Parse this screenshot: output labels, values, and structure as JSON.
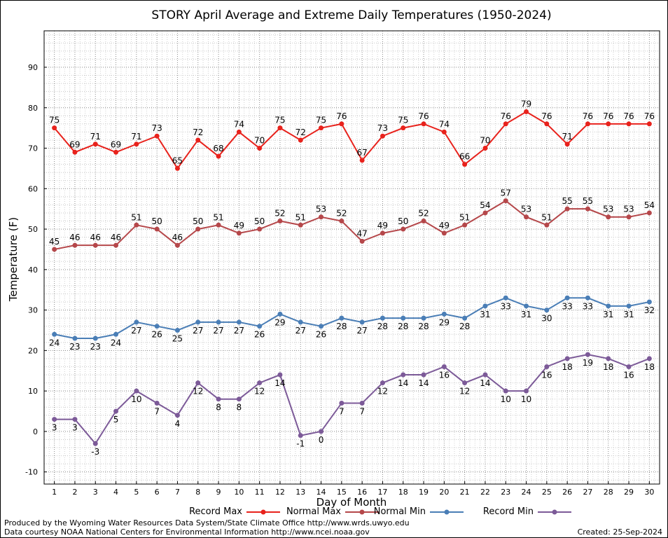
{
  "chart_data": {
    "type": "line",
    "title": "STORY April Average and Extreme Daily Temperatures (1950-2024)",
    "xlabel": "Day of Month",
    "ylabel": "Temperature (F)",
    "xlim": [
      0.5,
      30.5
    ],
    "ylim": [
      -13,
      99
    ],
    "x": [
      1,
      2,
      3,
      4,
      5,
      6,
      7,
      8,
      9,
      10,
      11,
      12,
      13,
      14,
      15,
      16,
      17,
      18,
      19,
      20,
      21,
      22,
      23,
      24,
      25,
      26,
      27,
      28,
      29,
      30
    ],
    "x_ticks": [
      "1",
      "2",
      "3",
      "4",
      "5",
      "6",
      "7",
      "8",
      "9",
      "10",
      "11",
      "12",
      "13",
      "14",
      "15",
      "16",
      "17",
      "18",
      "19",
      "20",
      "21",
      "22",
      "23",
      "24",
      "25",
      "26",
      "27",
      "28",
      "29",
      "30"
    ],
    "y_ticks": [
      -10,
      0,
      10,
      20,
      30,
      40,
      50,
      60,
      70,
      80,
      90
    ],
    "grid": true,
    "legend_position": "bottom",
    "series": [
      {
        "name": "Record Max",
        "color": "#e8221c",
        "label_position": "above",
        "values": [
          75,
          69,
          71,
          69,
          71,
          73,
          65,
          72,
          68,
          74,
          70,
          75,
          72,
          75,
          76,
          67,
          73,
          75,
          76,
          74,
          66,
          70,
          76,
          79,
          76,
          71,
          76,
          76,
          76,
          76
        ]
      },
      {
        "name": "Normal Max",
        "color": "#b5474a",
        "label_position": "above",
        "values": [
          45,
          46,
          46,
          46,
          51,
          50,
          46,
          50,
          51,
          49,
          50,
          52,
          51,
          53,
          52,
          47,
          49,
          50,
          52,
          49,
          51,
          54,
          57,
          53,
          51,
          55,
          55,
          53,
          53,
          54
        ]
      },
      {
        "name": "Normal Min",
        "color": "#4a7eb6",
        "label_position": "below",
        "values": [
          24,
          23,
          23,
          24,
          27,
          26,
          25,
          27,
          27,
          27,
          26,
          29,
          27,
          26,
          28,
          27,
          28,
          28,
          28,
          29,
          28,
          31,
          33,
          31,
          30,
          33,
          33,
          31,
          31,
          32
        ]
      },
      {
        "name": "Record Min",
        "color": "#7c5a98",
        "label_position": "below",
        "values": [
          3,
          3,
          -3,
          5,
          10,
          7,
          4,
          12,
          8,
          8,
          12,
          14,
          -1,
          0,
          7,
          7,
          12,
          14,
          14,
          16,
          12,
          14,
          10,
          10,
          16,
          18,
          19,
          18,
          16,
          18
        ]
      }
    ]
  },
  "footer": {
    "produced_by": "Produced by the Wyoming Water Resources Data System/State Climate Office http://www.wrds.uwyo.edu",
    "data_courtesy": "Data courtesy NOAA National Centers for Environmental Information http://www.ncei.noaa.gov",
    "created": "Created: 25-Sep-2024"
  }
}
